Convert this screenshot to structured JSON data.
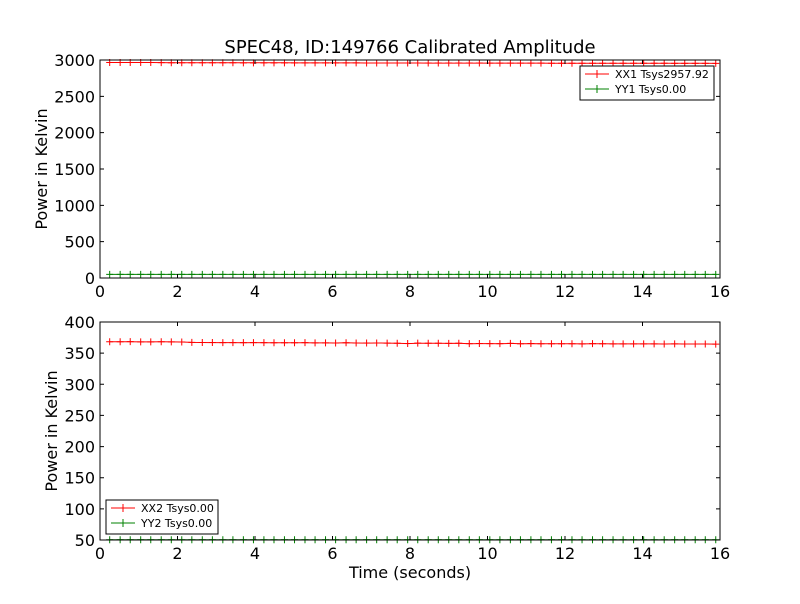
{
  "chart_data": [
    {
      "type": "line",
      "title": "SPEC48, ID:149766 Calibrated Amplitude",
      "xlabel": "",
      "ylabel": "Power in Kelvin",
      "xlim": [
        0,
        16
      ],
      "ylim": [
        0,
        3000
      ],
      "xticks": [
        "0",
        "2",
        "4",
        "6",
        "8",
        "10",
        "12",
        "14",
        "16"
      ],
      "yticks": [
        "0",
        "500",
        "1000",
        "1500",
        "2000",
        "2500",
        "3000"
      ],
      "legend_position": "top-right",
      "x": [
        0.25,
        0.52,
        0.78,
        1.05,
        1.31,
        1.58,
        1.84,
        2.11,
        2.37,
        2.64,
        2.9,
        3.17,
        3.43,
        3.7,
        3.96,
        4.23,
        4.49,
        4.76,
        5.02,
        5.29,
        5.55,
        5.82,
        6.08,
        6.35,
        6.61,
        6.88,
        7.14,
        7.41,
        7.67,
        7.94,
        8.2,
        8.47,
        8.73,
        9.0,
        9.26,
        9.53,
        9.79,
        10.06,
        10.32,
        10.59,
        10.85,
        11.12,
        11.38,
        11.65,
        11.91,
        12.18,
        12.44,
        12.71,
        12.97,
        13.24,
        13.5,
        13.77,
        14.03,
        14.3,
        14.56,
        14.83,
        15.09,
        15.36,
        15.62,
        15.89
      ],
      "series": [
        {
          "name": "XX1 Tsys2957.92",
          "color": "#ff0000",
          "values": [
            2965,
            2966,
            2966,
            2965,
            2965,
            2964,
            2963,
            2963,
            2962,
            2962,
            2962,
            2962,
            2962,
            2961,
            2961,
            2961,
            2961,
            2961,
            2960,
            2960,
            2960,
            2960,
            2960,
            2960,
            2960,
            2959,
            2959,
            2959,
            2959,
            2959,
            2959,
            2958,
            2958,
            2958,
            2958,
            2958,
            2958,
            2957,
            2957,
            2957,
            2957,
            2957,
            2957,
            2956,
            2956,
            2956,
            2956,
            2956,
            2956,
            2955,
            2955,
            2955,
            2955,
            2955,
            2955,
            2954,
            2954,
            2954,
            2954,
            2953
          ]
        },
        {
          "name": "YY1 Tsys0.00",
          "color": "#008000",
          "values": [
            50,
            50,
            50,
            50,
            50,
            50,
            50,
            50,
            50,
            50,
            50,
            50,
            50,
            50,
            50,
            50,
            50,
            50,
            50,
            50,
            50,
            50,
            50,
            50,
            50,
            50,
            50,
            50,
            50,
            50,
            50,
            50,
            50,
            50,
            50,
            50,
            50,
            50,
            50,
            50,
            50,
            50,
            50,
            50,
            50,
            50,
            50,
            50,
            50,
            50,
            50,
            50,
            50,
            50,
            50,
            50,
            50,
            50,
            50,
            50
          ]
        }
      ]
    },
    {
      "type": "line",
      "title": "",
      "xlabel": "Time (seconds)",
      "ylabel": "Power in Kelvin",
      "xlim": [
        0,
        16
      ],
      "ylim": [
        50,
        400
      ],
      "xticks": [
        "0",
        "2",
        "4",
        "6",
        "8",
        "10",
        "12",
        "14",
        "16"
      ],
      "yticks": [
        "50",
        "100",
        "150",
        "200",
        "250",
        "300",
        "350",
        "400"
      ],
      "legend_position": "bottom-left",
      "x": [
        0.25,
        0.52,
        0.78,
        1.05,
        1.31,
        1.58,
        1.84,
        2.11,
        2.37,
        2.64,
        2.9,
        3.17,
        3.43,
        3.7,
        3.96,
        4.23,
        4.49,
        4.76,
        5.02,
        5.29,
        5.55,
        5.82,
        6.08,
        6.35,
        6.61,
        6.88,
        7.14,
        7.41,
        7.67,
        7.94,
        8.2,
        8.47,
        8.73,
        9.0,
        9.26,
        9.53,
        9.79,
        10.06,
        10.32,
        10.59,
        10.85,
        11.12,
        11.38,
        11.65,
        11.91,
        12.18,
        12.44,
        12.71,
        12.97,
        13.24,
        13.5,
        13.77,
        14.03,
        14.3,
        14.56,
        14.83,
        15.09,
        15.36,
        15.62,
        15.89
      ],
      "series": [
        {
          "name": "XX2 Tsys0.00",
          "color": "#ff0000",
          "values": [
            368.2,
            368.3,
            368.4,
            368.1,
            368.0,
            368.2,
            368.0,
            367.9,
            367.2,
            367.1,
            367.0,
            366.9,
            366.9,
            366.8,
            366.9,
            366.8,
            366.7,
            366.7,
            366.7,
            366.8,
            366.4,
            366.4,
            366.3,
            366.6,
            366.3,
            366.2,
            366.3,
            366.1,
            365.8,
            365.4,
            366.0,
            365.9,
            365.8,
            365.7,
            365.8,
            365.2,
            365.4,
            365.3,
            365.2,
            365.6,
            365.1,
            365.4,
            365.0,
            365.1,
            365.0,
            365.0,
            364.9,
            365.2,
            365.0,
            364.8,
            364.9,
            364.9,
            364.8,
            364.8,
            364.6,
            364.8,
            364.7,
            364.7,
            364.6,
            364.5
          ]
        },
        {
          "name": "YY2 Tsys0.00",
          "color": "#008000",
          "values": [
            50.5,
            50.5,
            50.5,
            50.5,
            50.5,
            50.5,
            50.5,
            50.5,
            50.5,
            50.5,
            50.5,
            50.5,
            50.5,
            50.5,
            50.5,
            50.5,
            50.5,
            50.5,
            50.5,
            50.5,
            50.5,
            50.5,
            50.5,
            50.5,
            50.5,
            50.5,
            50.5,
            50.5,
            50.5,
            50.5,
            50.5,
            50.5,
            50.5,
            50.5,
            50.5,
            50.5,
            50.5,
            50.5,
            50.5,
            50.5,
            50.5,
            50.5,
            50.5,
            50.5,
            50.5,
            50.5,
            50.5,
            50.5,
            50.5,
            50.5,
            50.5,
            50.5,
            50.5,
            50.5,
            50.5,
            50.5,
            50.5,
            50.5,
            50.5,
            50.5
          ]
        }
      ]
    }
  ]
}
